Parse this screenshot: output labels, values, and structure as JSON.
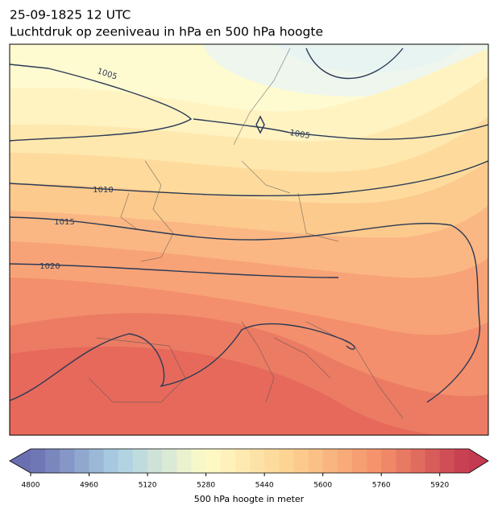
{
  "header": {
    "date": "25-09-1825 12 UTC",
    "title": "Luchtdruk op zeeniveau in hPa en 500 hPa hoogte"
  },
  "map": {
    "isobar_labels": [
      1005,
      1005,
      1010,
      1015,
      1020
    ]
  },
  "colorbar": {
    "label": "500 hPa hoogte in meter",
    "lim": [
      4800,
      6000
    ],
    "step": 40,
    "ticks": [
      4800,
      4960,
      5120,
      5280,
      5440,
      5600,
      5760,
      5920
    ],
    "colors": [
      "#6a6fb0",
      "#abd0e4",
      "#fefcc8",
      "#fdd08f",
      "#f48f69",
      "#c43a50"
    ],
    "extend": "both"
  }
}
